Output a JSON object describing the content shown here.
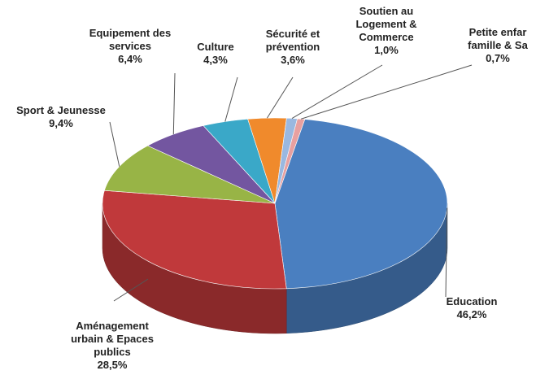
{
  "chart_data": {
    "type": "pie",
    "categories": [
      "Education",
      "Aménagement\nurbain & Epaces\npublics",
      "Sport & Jeunesse",
      "Equipement des\nservices",
      "Culture",
      "Sécurité et\nprévention",
      "Soutien au\nLogement &\nCommerce",
      "Petite enfar\nfamille & Sa"
    ],
    "values": [
      46.2,
      28.5,
      9.4,
      6.4,
      4.3,
      3.6,
      1.0,
      0.7
    ],
    "value_labels": [
      "46,2%",
      "28,5%",
      "9,4%",
      "6,4%",
      "4,3%",
      "3,6%",
      "1,0%",
      "0,7%"
    ],
    "colors": [
      "#4a7fc0",
      "#c0393b",
      "#98b446",
      "#7356a0",
      "#3aa8c8",
      "#f08a2c",
      "#9ab8e0",
      "#e8a0a0"
    ]
  }
}
